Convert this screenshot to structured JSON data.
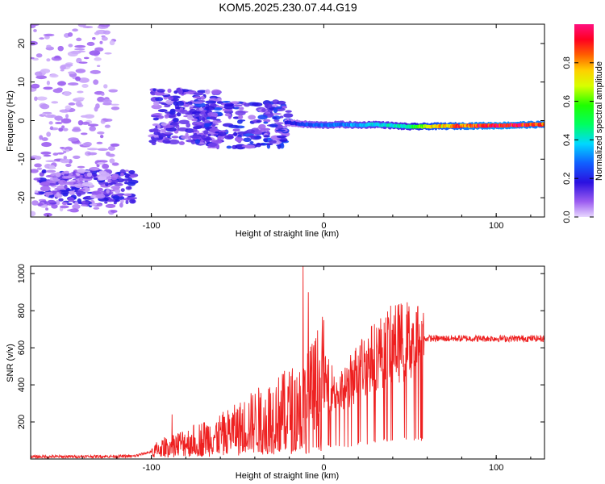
{
  "title": "KOM5.2025.230.07.44.G19",
  "chart_data": [
    {
      "type": "heatmap",
      "xlabel": "Height of straight line (km)",
      "ylabel": "Frequency (Hz)",
      "xlim": [
        -170,
        128
      ],
      "ylim": [
        -25,
        25
      ],
      "xticks": [
        -100,
        0,
        100
      ],
      "yticks": [
        -20,
        -10,
        0,
        10,
        20
      ],
      "colorbar": {
        "label": "Normalized spectral amplitude",
        "range": [
          0,
          1
        ],
        "ticks": [
          "0.0",
          "0.2",
          "0.4",
          "0.6",
          "0.8"
        ],
        "tick_values": [
          0.0,
          0.2,
          0.4,
          0.6,
          0.8
        ]
      },
      "ridge": {
        "description_values": "main spectral line",
        "points": [
          [
            -20,
            -0.5
          ],
          [
            -15,
            -0.8
          ],
          [
            -10,
            -1.0
          ],
          [
            0,
            -1.2
          ],
          [
            10,
            -1.0
          ],
          [
            20,
            -1.2
          ],
          [
            30,
            -1.0
          ],
          [
            40,
            -1.3
          ],
          [
            50,
            -1.6
          ],
          [
            60,
            -1.5
          ],
          [
            80,
            -1.4
          ],
          [
            100,
            -1.3
          ],
          [
            128,
            -1.0
          ]
        ],
        "amplitude": [
          [
            -20,
            0.18
          ],
          [
            -10,
            0.25
          ],
          [
            0,
            0.3
          ],
          [
            10,
            0.3
          ],
          [
            20,
            0.35
          ],
          [
            30,
            0.38
          ],
          [
            40,
            0.4
          ],
          [
            50,
            0.45
          ],
          [
            60,
            0.7
          ],
          [
            80,
            0.85
          ],
          [
            100,
            0.95
          ],
          [
            128,
            0.85
          ]
        ]
      },
      "clusters": [
        {
          "x": [
            -165,
            -110
          ],
          "y": [
            -22,
            -13
          ],
          "amp": 0.12
        },
        {
          "x": [
            -100,
            -60
          ],
          "y": [
            -6,
            8
          ],
          "amp": 0.12
        },
        {
          "x": [
            -75,
            -20
          ],
          "y": [
            -7,
            5
          ],
          "amp": 0.15
        },
        {
          "x": [
            -170,
            -120
          ],
          "y": [
            -25,
            25
          ],
          "amp": 0.05
        }
      ]
    },
    {
      "type": "line",
      "xlabel": "Height of straight line (km)",
      "ylabel": "SNR (v/v)",
      "xlim": [
        -170,
        128
      ],
      "ylim": [
        0,
        1040
      ],
      "xticks": [
        -100,
        0,
        100
      ],
      "yticks": [
        200,
        400,
        600,
        800,
        1000
      ],
      "series": [
        {
          "name": "SNR",
          "color": "#ee2020",
          "envelope": [
            [
              -170,
              12
            ],
            [
              -110,
              15
            ],
            [
              -100,
              40
            ],
            [
              -90,
              70
            ],
            [
              -80,
              90
            ],
            [
              -70,
              110
            ],
            [
              -60,
              130
            ],
            [
              -50,
              160
            ],
            [
              -40,
              200
            ],
            [
              -30,
              230
            ],
            [
              -20,
              260
            ],
            [
              -10,
              300
            ],
            [
              0,
              420
            ],
            [
              10,
              350
            ],
            [
              20,
              480
            ],
            [
              30,
              560
            ],
            [
              40,
              620
            ],
            [
              50,
              640
            ],
            [
              60,
              650
            ],
            [
              128,
              650
            ]
          ],
          "spikes": [
            [
              -88,
              240
            ],
            [
              -12,
              1040
            ],
            [
              -9,
              900
            ],
            [
              43,
              830
            ],
            [
              48,
              780
            ]
          ]
        }
      ]
    }
  ]
}
